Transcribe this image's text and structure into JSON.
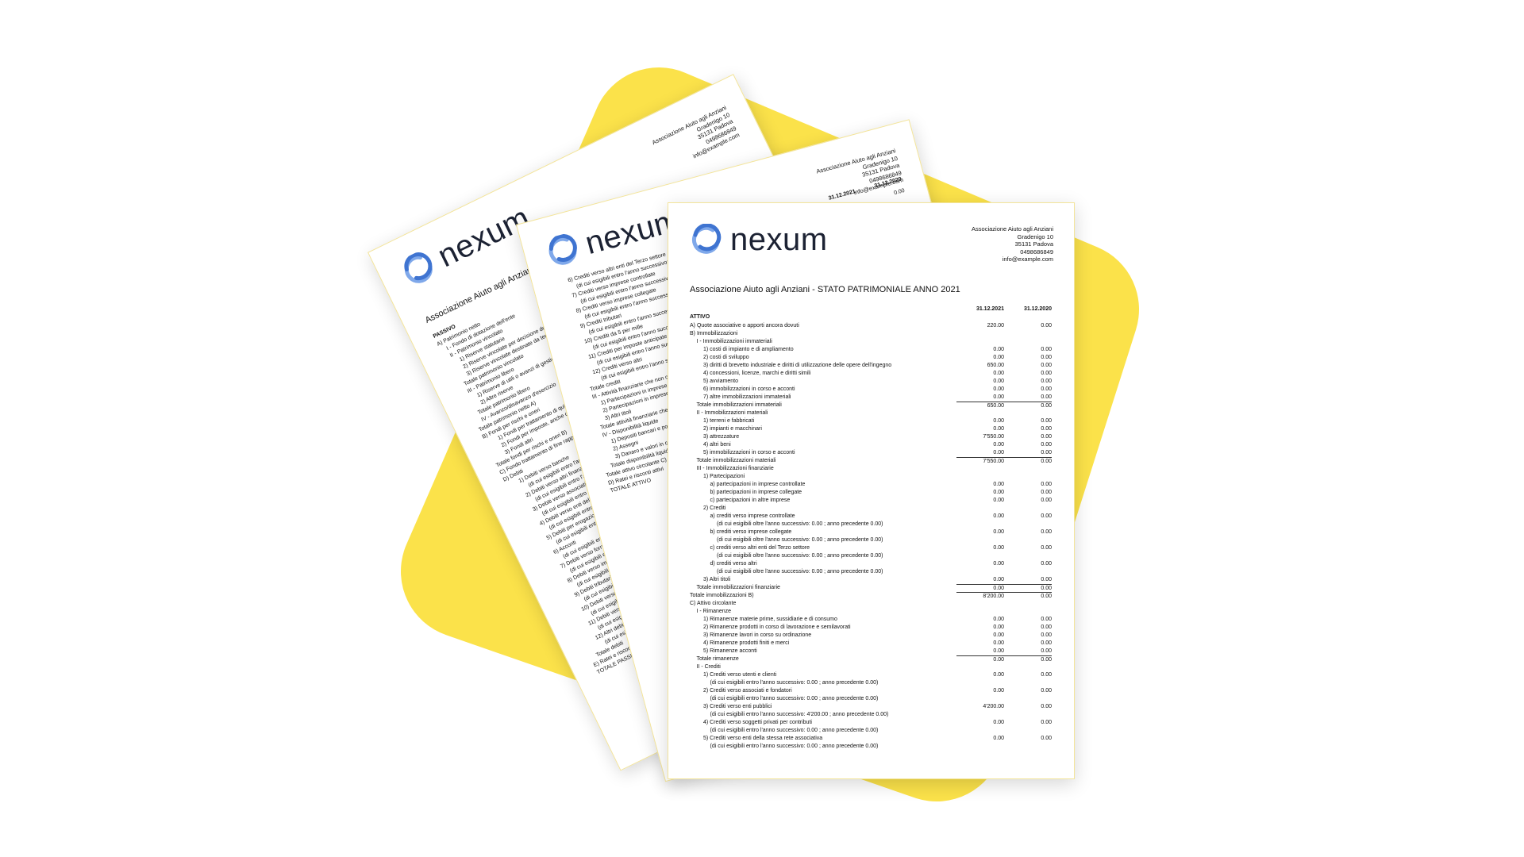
{
  "pages": [
    {
      "logo": "nexum",
      "address": [
        "Associazione Aiuto agli Anziani",
        "Gradenigo 10",
        "35131 Padova",
        "0498686849",
        "info@example.com"
      ],
      "title": "Associazione Aiuto agli Anziani",
      "section": "PASSIVO",
      "rows": [
        [
          "A) Patrimonio netto",
          null,
          null
        ],
        [
          "I - Fondo di dotazione dell'ente",
          null,
          null
        ],
        [
          "II - Patrimonio vincolato",
          null,
          null
        ],
        [
          "1) Riserve statutarie",
          null,
          null
        ],
        [
          "2) Riserve vincolate per decisione degli organi istituzionali",
          null,
          null
        ],
        [
          "3) Riserve vincolate destinate da terzi",
          null,
          null
        ],
        [
          "Totale patrimonio vincolato",
          null,
          null
        ],
        [
          "III - Patrimonio libero",
          null,
          null
        ],
        [
          "1) Riserve di utili o avanzi di gestione",
          null,
          null
        ],
        [
          "2) Altre riserve",
          null,
          null
        ],
        [
          "Totale patrimonio libero",
          null,
          null
        ],
        [
          "IV - Avanzo/disavanzo d'esercizio",
          null,
          null
        ],
        [
          "Totale patrimonio netto A)",
          null,
          null
        ],
        [
          "B) Fondi per rischi e oneri",
          null,
          null
        ],
        [
          "1) Fondi per trattamento di quiescenza e obblighi simili",
          null,
          null
        ],
        [
          "2) Fondi per imposte, anche differite",
          null,
          null
        ],
        [
          "3) Fondi altri",
          null,
          null
        ],
        [
          "Totale fondi per rischi e oneri B)",
          null,
          null
        ],
        [
          "C) Fondo trattamento di fine rapporto di lavoro subordinato",
          null,
          null
        ],
        [
          "D) Debiti",
          null,
          null
        ],
        [
          "1) Debiti verso banche",
          null,
          null
        ],
        [
          "(di cui esigibili entro l'anno successivo)",
          null,
          null
        ],
        [
          "2) Debiti verso altri finanziatori",
          null,
          null
        ],
        [
          "(di cui esigibili entro l'anno successivo)",
          null,
          null
        ],
        [
          "3) Debiti verso associati e fondatori per finanziamenti",
          null,
          null
        ],
        [
          "(di cui esigibili entro l'anno successivo)",
          null,
          null
        ],
        [
          "4) Debiti verso enti della stessa rete associativa",
          null,
          null
        ],
        [
          "(di cui esigibili entro l'anno successivo)",
          null,
          null
        ],
        [
          "5) Debiti per erogazioni liberali condizionate",
          null,
          null
        ],
        [
          "(di cui esigibili entro l'anno successivo)",
          null,
          null
        ],
        [
          "6) Acconti",
          null,
          null
        ],
        [
          "(di cui esigibili entro l'anno successivo)",
          null,
          null
        ],
        [
          "7) Debiti verso fornitori",
          null,
          null
        ],
        [
          "(di cui esigibili entro l'anno successivo)",
          null,
          null
        ],
        [
          "8) Debiti verso imprese controllate e collegate",
          null,
          null
        ],
        [
          "(di cui esigibili entro l'anno successivo)",
          null,
          null
        ],
        [
          "9) Debiti tributari",
          null,
          null
        ],
        [
          "(di cui esigibili entro l'anno successivo)",
          null,
          null
        ],
        [
          "10) Debiti verso istituti di previdenza",
          null,
          null
        ],
        [
          "(di cui esigibili entro l'anno successivo)",
          null,
          null
        ],
        [
          "11) Debiti verso dipendenti e collaboratori",
          null,
          null
        ],
        [
          "(di cui esigibili entro l'anno successivo)",
          null,
          null
        ],
        [
          "12) Altri debiti",
          null,
          null
        ],
        [
          "(di cui esigibili entro l'anno successivo)",
          null,
          null
        ],
        [
          "Totale debiti",
          null,
          null
        ],
        [
          "E) Ratei e risconti passivi",
          null,
          null
        ],
        [
          "TOTALE PASSIVO",
          null,
          null
        ]
      ]
    },
    {
      "logo": "nexum",
      "address": [
        "Associazione Aiuto agli Anziani",
        "Gradenigo 10",
        "35131 Padova",
        "0498686849",
        "info@example.com"
      ],
      "columns": [
        "31.12.2021",
        "31.12.2020"
      ],
      "rows": [
        [
          "6) Crediti verso altri enti del Terzo settore",
          null,
          "0.00"
        ],
        [
          "(di cui esigibili entro l'anno successivo: 0.00 ; anno precedente 0.00)",
          null,
          null
        ],
        [
          "7) Crediti verso imprese controllate",
          null,
          null
        ],
        [
          "(di cui esigibili entro l'anno successivo: 0.00 ; anno precedente 0.00)",
          null,
          null
        ],
        [
          "8) Crediti verso imprese collegate",
          null,
          null
        ],
        [
          "(di cui esigibili entro l'anno successivo: 0.00 ; anno precedente 0.00)",
          null,
          null
        ],
        [
          "9) Crediti tributari",
          null,
          null
        ],
        [
          "(di cui esigibili entro l'anno successivo: 0.00 ; anno precedente 0.00)",
          null,
          null
        ],
        [
          "10) Crediti da 5 per mille",
          null,
          null
        ],
        [
          "(di cui esigibili entro l'anno successivo: 0.00 ; anno precedente 0.00)",
          null,
          null
        ],
        [
          "11) Crediti per imposte anticipate",
          null,
          null
        ],
        [
          "(di cui esigibili entro l'anno successivo: 0.00 ; anno precedente 0.00)",
          null,
          null
        ],
        [
          "12) Crediti verso altri",
          null,
          null
        ],
        [
          "(di cui esigibili entro l'anno successivo: 0.00 ; anno precedente 0.00)",
          null,
          null
        ],
        [
          "Totale crediti",
          null,
          null
        ],
        [
          "III - Attività finanziarie che non costituiscono immobilizzazioni",
          null,
          null
        ],
        [
          "1) Partecipazioni in imprese controllate",
          null,
          null
        ],
        [
          "2) Partecipazioni in imprese collegate",
          null,
          null
        ],
        [
          "3) Altri titoli",
          null,
          null
        ],
        [
          "Totale attività finanziarie che non costituiscono immobilizzazioni",
          null,
          null
        ],
        [
          "IV - Disponibilità liquide",
          null,
          null
        ],
        [
          "1) Depositi bancari e postali",
          null,
          null
        ],
        [
          "2) Assegni",
          null,
          null
        ],
        [
          "3) Danaro e valori in cassa",
          null,
          null
        ],
        [
          "Totale disponibilità liquide",
          null,
          null
        ],
        [
          "Totale attivo circolante C)",
          null,
          null
        ],
        [
          "D) Ratei e risconti attivi",
          null,
          null
        ],
        [
          "TOTALE ATTIVO",
          null,
          null
        ]
      ]
    },
    {
      "logo": "nexum",
      "address": [
        "Associazione Aiuto agli Anziani",
        "Gradenigo 10",
        "35131 Padova",
        "0498686849",
        "info@example.com"
      ],
      "title": "Associazione Aiuto agli Anziani - STATO PATRIMONIALE ANNO 2021",
      "columns": [
        "31.12.2021",
        "31.12.2020"
      ],
      "section": "ATTIVO",
      "rows": [
        [
          "A) Quote associative o apporti ancora dovuti",
          "220.00",
          "0.00"
        ],
        [
          "B) Immobilizzazioni",
          null,
          null
        ],
        [
          "I - Immobilizzazioni immateriali",
          null,
          null
        ],
        [
          "1) costi di impianto e di ampliamento",
          "0.00",
          "0.00"
        ],
        [
          "2) costi di sviluppo",
          "0.00",
          "0.00"
        ],
        [
          "3) diritti di brevetto industriale e diritti di utilizzazione delle opere dell'ingegno",
          "650.00",
          "0.00"
        ],
        [
          "4) concessioni, licenze, marchi e diritti simili",
          "0.00",
          "0.00"
        ],
        [
          "5) avviamento",
          "0.00",
          "0.00"
        ],
        [
          "6) immobilizzazioni in corso e acconti",
          "0.00",
          "0.00"
        ],
        [
          "7) altre immobilizzazioni immateriali",
          "0.00",
          "0.00"
        ],
        [
          "Totale immobilizzazioni immateriali",
          "650.00",
          "0.00"
        ],
        [
          "II - Immobilizzazioni materiali",
          null,
          null
        ],
        [
          "1) terreni e fabbricati",
          "0.00",
          "0.00"
        ],
        [
          "2) impianti e macchinari",
          "0.00",
          "0.00"
        ],
        [
          "3) attrezzature",
          "7'550.00",
          "0.00"
        ],
        [
          "4) altri beni",
          "0.00",
          "0.00"
        ],
        [
          "5) immobilizzazioni in corso e acconti",
          "0.00",
          "0.00"
        ],
        [
          "Totale immobilizzazioni materiali",
          "7'550.00",
          "0.00"
        ],
        [
          "III - Immobilizzazioni finanziarie",
          null,
          null
        ],
        [
          "1) Partecipazioni",
          null,
          null
        ],
        [
          "a) partecipazioni in imprese controllate",
          "0.00",
          "0.00"
        ],
        [
          "b) partecipazioni in imprese collegate",
          "0.00",
          "0.00"
        ],
        [
          "c) partecipazioni in altre imprese",
          "0.00",
          "0.00"
        ],
        [
          "2) Crediti",
          null,
          null
        ],
        [
          "a) crediti verso imprese controllate",
          "0.00",
          "0.00"
        ],
        [
          "(di cui esigibili oltre l'anno successivo: 0.00 ; anno precedente 0.00)",
          null,
          null
        ],
        [
          "b) crediti verso imprese collegate",
          "0.00",
          "0.00"
        ],
        [
          "(di cui esigibili oltre l'anno successivo: 0.00 ; anno precedente 0.00)",
          null,
          null
        ],
        [
          "c) crediti verso altri enti del Terzo settore",
          "0.00",
          "0.00"
        ],
        [
          "(di cui esigibili oltre l'anno successivo: 0.00 ; anno precedente 0.00)",
          null,
          null
        ],
        [
          "d) crediti verso altri",
          "0.00",
          "0.00"
        ],
        [
          "(di cui esigibili oltre l'anno successivo: 0.00 ; anno precedente 0.00)",
          null,
          null
        ],
        [
          "3) Altri titoli",
          "0.00",
          "0.00"
        ],
        [
          "Totale immobilizzazioni finanziarie",
          "0.00",
          "0.00"
        ],
        [
          "Totale immobilizzazioni B)",
          "8'200.00",
          "0.00"
        ],
        [
          "C) Attivo circolante",
          null,
          null
        ],
        [
          "I - Rimanenze",
          null,
          null
        ],
        [
          "1) Rimanenze materie prime, sussidiarie e di consumo",
          "0.00",
          "0.00"
        ],
        [
          "2) Rimanenze prodotti in corso di lavorazione e semilavorati",
          "0.00",
          "0.00"
        ],
        [
          "3) Rimanenze lavori in corso su ordinazione",
          "0.00",
          "0.00"
        ],
        [
          "4) Rimanenze prodotti finiti e merci",
          "0.00",
          "0.00"
        ],
        [
          "5) Rimanenze acconti",
          "0.00",
          "0.00"
        ],
        [
          "Totale rimanenze",
          "0.00",
          "0.00"
        ],
        [
          "II - Crediti",
          null,
          null
        ],
        [
          "1) Crediti verso utenti e clienti",
          "0.00",
          "0.00"
        ],
        [
          "(di cui esigibili entro l'anno successivo: 0.00 ; anno precedente 0.00)",
          null,
          null
        ],
        [
          "2) Crediti verso associati e fondatori",
          "0.00",
          "0.00"
        ],
        [
          "(di cui esigibili entro l'anno successivo: 0.00 ; anno precedente 0.00)",
          null,
          null
        ],
        [
          "3) Crediti verso enti pubblici",
          "4'200.00",
          "0.00"
        ],
        [
          "(di cui esigibili entro l'anno successivo: 4'200.00 ; anno precedente 0.00)",
          null,
          null
        ],
        [
          "4) Crediti verso soggetti privati per contributi",
          "0.00",
          "0.00"
        ],
        [
          "(di cui esigibili entro l'anno successivo: 0.00 ; anno precedente 0.00)",
          null,
          null
        ],
        [
          "5) Crediti verso enti della stessa rete associativa",
          "0.00",
          "0.00"
        ],
        [
          "(di cui esigibili entro l'anno successivo: 0.00 ; anno precedente 0.00)",
          null,
          null
        ]
      ]
    }
  ]
}
